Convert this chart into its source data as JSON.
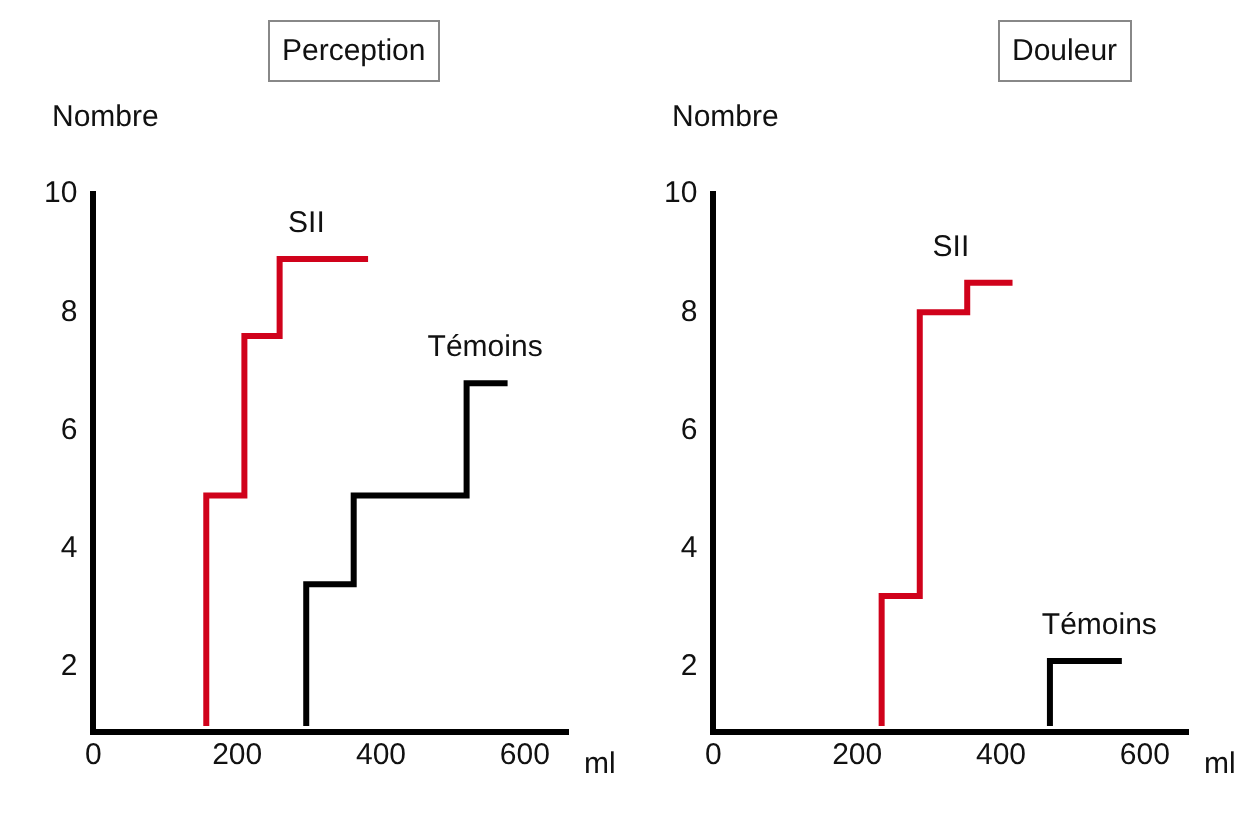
{
  "chart_data": [
    {
      "type": "step",
      "title": "Perception",
      "xlabel": "ml",
      "ylabel": "Nombre",
      "xlim": [
        0,
        660
      ],
      "ylim": [
        0.9,
        10
      ],
      "xticks": [
        0,
        200,
        400,
        600
      ],
      "yticks": [
        2,
        4,
        6,
        8,
        10
      ],
      "grid": false,
      "legend": false,
      "marker": "none",
      "series": [
        {
          "name": "SII",
          "color": "#d0021b",
          "x": [
            157,
            157,
            210,
            259,
            382
          ],
          "values": [
            1,
            4.9,
            7.6,
            8.9,
            8.9
          ]
        },
        {
          "name": "Témoins",
          "color": "#000000",
          "x": [
            296,
            296,
            362,
            519,
            576
          ],
          "values": [
            1,
            3.4,
            4.9,
            6.8,
            6.8
          ]
        }
      ]
    },
    {
      "type": "step",
      "title": "Douleur",
      "xlabel": "ml",
      "ylabel": "Nombre",
      "xlim": [
        0,
        660
      ],
      "ylim": [
        0.9,
        10
      ],
      "xticks": [
        0,
        200,
        400,
        600
      ],
      "yticks": [
        2,
        4,
        6,
        8,
        10
      ],
      "grid": false,
      "legend": false,
      "marker": "none",
      "series": [
        {
          "name": "SII",
          "color": "#d0021b",
          "x": [
            234,
            234,
            287,
            353,
            416
          ],
          "values": [
            1,
            3.2,
            8,
            8.5,
            8.5
          ]
        },
        {
          "name": "Témoins",
          "color": "#000000",
          "x": [
            468,
            468,
            568
          ],
          "values": [
            1,
            2.1,
            2.1
          ]
        }
      ]
    }
  ]
}
